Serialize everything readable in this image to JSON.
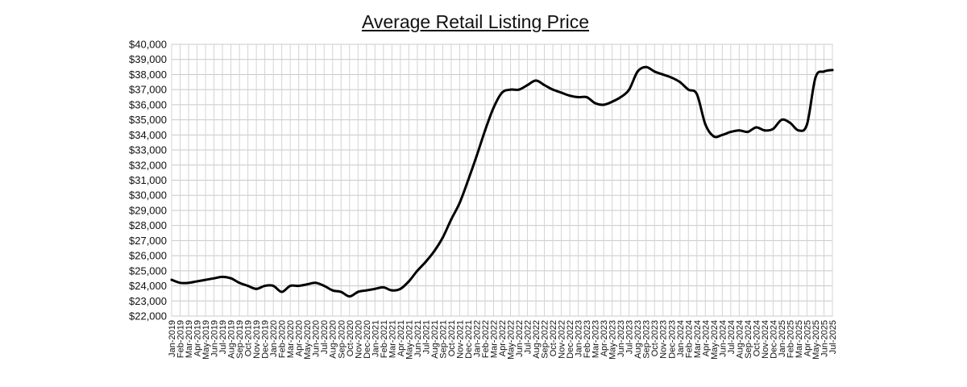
{
  "chart_data": {
    "type": "line",
    "title": "Average Retail Listing Price",
    "xlabel": "",
    "ylabel": "",
    "ylim": [
      22000,
      40000
    ],
    "y_ticks": [
      22000,
      23000,
      24000,
      25000,
      26000,
      27000,
      28000,
      29000,
      30000,
      31000,
      32000,
      33000,
      34000,
      35000,
      36000,
      37000,
      38000,
      39000,
      40000
    ],
    "y_tick_labels": [
      "$22,000",
      "$23,000",
      "$24,000",
      "$25,000",
      "$26,000",
      "$27,000",
      "$28,000",
      "$29,000",
      "$30,000",
      "$31,000",
      "$32,000",
      "$33,000",
      "$34,000",
      "$35,000",
      "$36,000",
      "$37,000",
      "$38,000",
      "$39,000",
      "$40,000"
    ],
    "x_ticks": [
      "Jan-2019",
      "Feb-2019",
      "Mar-2019",
      "Apr-2019",
      "May-2019",
      "Jun-2019",
      "Jul-2019",
      "Aug-2019",
      "Sep-2019",
      "Oct-2019",
      "Nov-2019",
      "Dec-2019",
      "Jan-2020",
      "Feb-2020",
      "Mar-2020",
      "Apr-2020",
      "May-2020",
      "Jun-2020",
      "Jul-2020",
      "Aug-2020",
      "Sep-2020",
      "Oct-2020",
      "Nov-2020",
      "Dec-2020",
      "Jan-2021",
      "Feb-2021",
      "Mar-2021",
      "Apr-2021",
      "May-2021",
      "Jun-2021",
      "Jul-2021",
      "Aug-2021",
      "Sep-2021",
      "Oct-2021",
      "Nov-2021",
      "Dec-2021",
      "Jan-2022",
      "Feb-2022",
      "Mar-2022",
      "Apr-2022",
      "May-2022",
      "Jun-2022",
      "Jul-2022",
      "Aug-2022",
      "Sep-2022",
      "Oct-2022",
      "Nov-2022",
      "Dec-2022",
      "Jan-2023",
      "Feb-2023",
      "Mar-2023",
      "Apr-2023",
      "May-2023",
      "Jun-2023",
      "Jul-2023",
      "Aug-2023",
      "Sep-2023",
      "Oct-2023",
      "Nov-2023",
      "Dec-2023",
      "Jan-2024",
      "Feb-2024",
      "Mar-2024",
      "Apr-2024",
      "May-2024",
      "Jun-2024",
      "Jul-2024",
      "Aug-2024",
      "Sep-2024",
      "Oct-2024",
      "Nov-2024",
      "Dec-2024",
      "Jan-2025",
      "Feb-2025",
      "Mar-2025",
      "Apr-2025",
      "May-2025",
      "Jun-2025",
      "Jul-2025"
    ],
    "grid": true,
    "legend": "none",
    "series": [
      {
        "color": "#000000",
        "x": [
          "Jan-2019",
          "Feb-2019",
          "Mar-2019",
          "Apr-2019",
          "May-2019",
          "Jun-2019",
          "Jul-2019",
          "Aug-2019",
          "Sep-2019",
          "Oct-2019",
          "Nov-2019",
          "Dec-2019",
          "Jan-2020",
          "Feb-2020",
          "Mar-2020",
          "Apr-2020",
          "May-2020",
          "Jun-2020",
          "Jul-2020",
          "Aug-2020",
          "Sep-2020",
          "Oct-2020",
          "Nov-2020",
          "Dec-2020",
          "Jan-2021",
          "Feb-2021",
          "Mar-2021",
          "Apr-2021",
          "May-2021",
          "Jun-2021",
          "Jul-2021",
          "Aug-2021",
          "Sep-2021",
          "Oct-2021",
          "Nov-2021",
          "Dec-2021",
          "Jan-2022",
          "Feb-2022",
          "Mar-2022",
          "Apr-2022",
          "May-2022",
          "Jun-2022",
          "Jul-2022",
          "Aug-2022",
          "Sep-2022",
          "Oct-2022",
          "Nov-2022",
          "Dec-2022",
          "Jan-2023",
          "Feb-2023",
          "Mar-2023",
          "Apr-2023",
          "May-2023",
          "Jun-2023",
          "Jul-2023",
          "Aug-2023",
          "Sep-2023",
          "Oct-2023",
          "Nov-2023",
          "Dec-2023",
          "Jan-2024",
          "Feb-2024",
          "Mar-2024",
          "Apr-2024",
          "May-2024",
          "Jun-2024",
          "Jul-2024",
          "Aug-2024",
          "Sep-2024",
          "Oct-2024",
          "Nov-2024",
          "Dec-2024",
          "Jan-2025",
          "Feb-2025",
          "Mar-2025",
          "Apr-2025",
          "May-2025",
          "Jun-2025",
          "Jul-2025"
        ],
        "values": [
          24400,
          24200,
          24200,
          24300,
          24400,
          24500,
          24600,
          24500,
          24200,
          24000,
          23800,
          24000,
          24000,
          23600,
          24000,
          24000,
          24100,
          24200,
          24000,
          23700,
          23600,
          23300,
          23600,
          23700,
          23800,
          23900,
          23700,
          23800,
          24300,
          25000,
          25600,
          26300,
          27200,
          28400,
          29500,
          31000,
          32600,
          34300,
          35800,
          36800,
          37000,
          37000,
          37300,
          37600,
          37300,
          37000,
          36800,
          36600,
          36500,
          36500,
          36100,
          36000,
          36200,
          36500,
          37000,
          38200,
          38500,
          38200,
          38000,
          37800,
          37500,
          37000,
          36700,
          34700,
          33900,
          34000,
          34200,
          34300,
          34200,
          34500,
          34300,
          34400,
          35000,
          34800,
          34300,
          34700,
          37800,
          38200,
          38300
        ]
      }
    ]
  }
}
